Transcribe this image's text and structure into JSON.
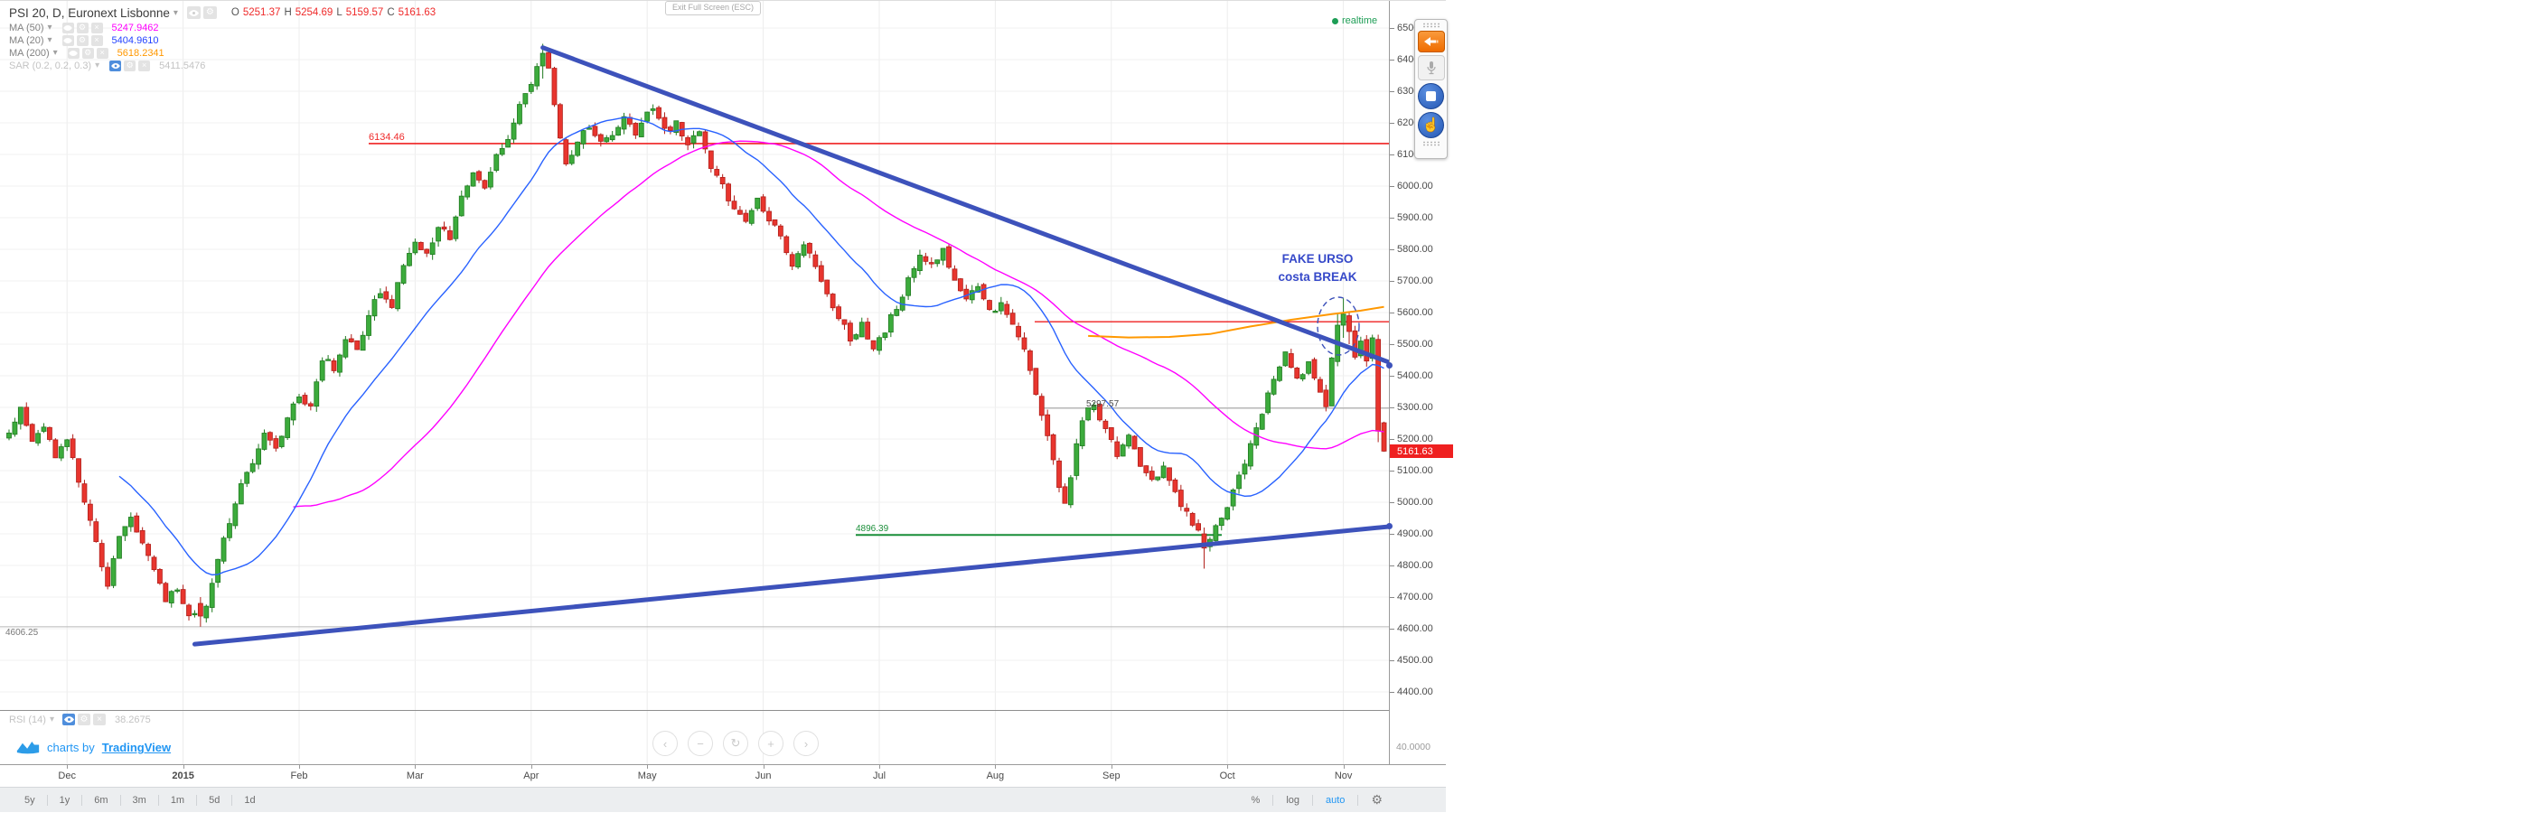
{
  "header": {
    "symbol": "PSI 20, D, Euronext Lisbonne",
    "ohlc": {
      "o_label": "O",
      "o": "5251.37",
      "h_label": "H",
      "h": "5254.69",
      "l_label": "L",
      "l": "5159.57",
      "c_label": "C",
      "c": "5161.63"
    },
    "exit_fullscreen": "Exit Full Screen (ESC)",
    "realtime": "realtime"
  },
  "legend": {
    "rows": [
      {
        "label": "MA (50)",
        "value": "5247.9462",
        "color": "#ff00ff",
        "muted": false
      },
      {
        "label": "MA (20)",
        "value": "5404.9610",
        "color": "#2443ff",
        "muted": false
      },
      {
        "label": "MA (200)",
        "value": "5618.2341",
        "color": "#ff9800",
        "muted": false
      },
      {
        "label": "SAR (0.2, 0.2, 0.3)",
        "value": "5411.5476",
        "color": "#c9c9c9",
        "muted": true
      }
    ]
  },
  "rsi": {
    "label": "RSI (14)",
    "value": "38.2675",
    "scale_label": "40.0000"
  },
  "attribution": {
    "text": "charts by",
    "link": "TradingView"
  },
  "price_axis": {
    "ticks": [
      6500,
      6400,
      6300,
      6200,
      6100,
      6000,
      5900,
      5800,
      5700,
      5600,
      5500,
      5400,
      5300,
      5200,
      5100,
      5000,
      4900,
      4800,
      4700,
      4600,
      4500,
      4400
    ],
    "last_price_label": "5161.63"
  },
  "time_axis": {
    "ticks": [
      {
        "label": "Dec",
        "day": 10,
        "bold": false
      },
      {
        "label": "2015",
        "day": 30,
        "bold": true
      },
      {
        "label": "Feb",
        "day": 50,
        "bold": false
      },
      {
        "label": "Mar",
        "day": 70,
        "bold": false
      },
      {
        "label": "Apr",
        "day": 90,
        "bold": false
      },
      {
        "label": "May",
        "day": 110,
        "bold": false
      },
      {
        "label": "Jun",
        "day": 130,
        "bold": false
      },
      {
        "label": "Jul",
        "day": 150,
        "bold": false
      },
      {
        "label": "Aug",
        "day": 170,
        "bold": false
      },
      {
        "label": "Sep",
        "day": 190,
        "bold": false
      },
      {
        "label": "Oct",
        "day": 210,
        "bold": false
      },
      {
        "label": "Nov",
        "day": 230,
        "bold": false
      }
    ]
  },
  "toolbar": {
    "ranges": [
      "5y",
      "1y",
      "6m",
      "3m",
      "1m",
      "5d",
      "1d"
    ],
    "percent": "%",
    "log": "log",
    "auto": "auto",
    "active_scale": "auto"
  },
  "nav_glyphs": [
    "‹",
    "−",
    "↻",
    "+",
    "›"
  ],
  "extension_toolbar": {
    "icons": [
      "back-arrow",
      "microphone",
      "stop",
      "hand-click"
    ]
  },
  "chart_data": {
    "type": "candlestick",
    "title": "PSI 20, D, Euronext Lisbonne",
    "timeframe": "D",
    "x_range": "Dec 2014 - Nov 2015",
    "ylim": [
      4350,
      6550
    ],
    "last_candle": {
      "o": 5251.37,
      "h": 5254.69,
      "l": 5159.57,
      "c": 5161.63
    },
    "colors": {
      "up": "#3cab3c",
      "up_border": "#1f7a1f",
      "down": "#e8352e",
      "down_border": "#b01f1a",
      "ma20": "#2962ff",
      "ma50": "#ff00ff",
      "ma200": "#ff9800",
      "trend": "#3d52bb"
    },
    "anchors": [
      [
        0,
        5210
      ],
      [
        2,
        5290
      ],
      [
        4,
        5180
      ],
      [
        6,
        5250
      ],
      [
        8,
        5150
      ],
      [
        10,
        5200
      ],
      [
        12,
        5060
      ],
      [
        14,
        4950
      ],
      [
        16,
        4790
      ],
      [
        17,
        4730
      ],
      [
        19,
        4890
      ],
      [
        21,
        4960
      ],
      [
        23,
        4870
      ],
      [
        25,
        4790
      ],
      [
        27,
        4690
      ],
      [
        29,
        4720
      ],
      [
        31,
        4645
      ],
      [
        33,
        4630
      ],
      [
        34,
        4680
      ],
      [
        36,
        4820
      ],
      [
        38,
        4930
      ],
      [
        40,
        5050
      ],
      [
        42,
        5120
      ],
      [
        44,
        5210
      ],
      [
        46,
        5160
      ],
      [
        48,
        5260
      ],
      [
        50,
        5340
      ],
      [
        52,
        5300
      ],
      [
        54,
        5460
      ],
      [
        56,
        5420
      ],
      [
        58,
        5520
      ],
      [
        60,
        5480
      ],
      [
        62,
        5600
      ],
      [
        64,
        5660
      ],
      [
        66,
        5620
      ],
      [
        68,
        5750
      ],
      [
        70,
        5820
      ],
      [
        72,
        5780
      ],
      [
        74,
        5880
      ],
      [
        76,
        5830
      ],
      [
        78,
        5960
      ],
      [
        80,
        6030
      ],
      [
        82,
        5990
      ],
      [
        84,
        6090
      ],
      [
        86,
        6160
      ],
      [
        88,
        6260
      ],
      [
        90,
        6330
      ],
      [
        92,
        6420
      ],
      [
        93,
        6380
      ],
      [
        94,
        6250
      ],
      [
        96,
        6080
      ],
      [
        98,
        6140
      ],
      [
        100,
        6190
      ],
      [
        102,
        6130
      ],
      [
        104,
        6170
      ],
      [
        106,
        6220
      ],
      [
        108,
        6160
      ],
      [
        110,
        6230
      ],
      [
        111,
        6255
      ],
      [
        113,
        6170
      ],
      [
        115,
        6200
      ],
      [
        117,
        6130
      ],
      [
        119,
        6170
      ],
      [
        121,
        6060
      ],
      [
        123,
        6000
      ],
      [
        125,
        5930
      ],
      [
        127,
        5890
      ],
      [
        129,
        5960
      ],
      [
        131,
        5900
      ],
      [
        133,
        5830
      ],
      [
        135,
        5750
      ],
      [
        137,
        5820
      ],
      [
        139,
        5740
      ],
      [
        141,
        5660
      ],
      [
        143,
        5580
      ],
      [
        145,
        5520
      ],
      [
        147,
        5560
      ],
      [
        149,
        5490
      ],
      [
        151,
        5545
      ],
      [
        153,
        5620
      ],
      [
        155,
        5700
      ],
      [
        157,
        5780
      ],
      [
        159,
        5745
      ],
      [
        161,
        5790
      ],
      [
        163,
        5700
      ],
      [
        165,
        5645
      ],
      [
        167,
        5685
      ],
      [
        169,
        5600
      ],
      [
        171,
        5630
      ],
      [
        173,
        5550
      ],
      [
        175,
        5480
      ],
      [
        177,
        5350
      ],
      [
        179,
        5210
      ],
      [
        181,
        5050
      ],
      [
        182,
        4985
      ],
      [
        183,
        5090
      ],
      [
        185,
        5265
      ],
      [
        187,
        5310
      ],
      [
        189,
        5230
      ],
      [
        191,
        5150
      ],
      [
        193,
        5225
      ],
      [
        195,
        5120
      ],
      [
        197,
        5060
      ],
      [
        199,
        5125
      ],
      [
        201,
        5030
      ],
      [
        203,
        4960
      ],
      [
        205,
        4900
      ],
      [
        206,
        4855
      ],
      [
        208,
        4925
      ],
      [
        210,
        4985
      ],
      [
        212,
        5085
      ],
      [
        214,
        5180
      ],
      [
        216,
        5285
      ],
      [
        218,
        5385
      ],
      [
        220,
        5465
      ],
      [
        222,
        5385
      ],
      [
        224,
        5445
      ],
      [
        226,
        5360
      ],
      [
        227,
        5305
      ],
      [
        228,
        5445
      ],
      [
        229,
        5560
      ],
      [
        230,
        5595
      ],
      [
        231,
        5540
      ],
      [
        232,
        5470
      ],
      [
        233,
        5510
      ],
      [
        234,
        5445
      ],
      [
        235,
        5520
      ],
      [
        236,
        5225
      ],
      [
        237,
        5161.63
      ]
    ],
    "overrides": {
      "33": [
        4680,
        4700,
        4606.25,
        4640
      ],
      "92": [
        6380,
        6450,
        6340,
        6420
      ],
      "206": [
        4900,
        4920,
        4790,
        4855
      ],
      "229": [
        5445,
        5600,
        5430,
        5560
      ],
      "230": [
        5560,
        5645,
        5520,
        5595
      ],
      "231": [
        5590,
        5600,
        5500,
        5540
      ],
      "235": [
        5455,
        5530,
        5445,
        5520
      ],
      "236": [
        5515,
        5530,
        5190,
        5225
      ],
      "237": [
        5251.37,
        5254.69,
        5159.57,
        5161.63
      ]
    },
    "ma200_path": [
      [
        186,
        5526
      ],
      [
        193,
        5521
      ],
      [
        200,
        5523
      ],
      [
        207,
        5532
      ],
      [
        214,
        5556
      ],
      [
        221,
        5577
      ],
      [
        228,
        5595
      ],
      [
        233,
        5606
      ],
      [
        237,
        5618
      ]
    ],
    "trendlines": [
      {
        "name": "upper-descending",
        "p1": [
          92,
          6438
        ],
        "p2": [
          239,
          5435
        ]
      },
      {
        "name": "lower-ascending",
        "p1": [
          32,
          4551
        ],
        "p2": [
          239,
          4925
        ]
      }
    ],
    "hlines": [
      {
        "label": "6134.46",
        "price": 6134.46,
        "x1": 408,
        "x2": 1537,
        "color": "#ef2020",
        "width": 1.6
      },
      {
        "label": "",
        "price": 5571,
        "x1": 1145,
        "x2": 1537,
        "color": "#ef2020",
        "width": 1.4
      },
      {
        "label": "5297.57",
        "price": 5297.57,
        "x1": 1150,
        "x2": 1537,
        "color": "#9a9a9a",
        "width": 1
      },
      {
        "label": "4896.39",
        "price": 4896.39,
        "x1": 947,
        "x2": 1352,
        "color": "#1b8f3a",
        "width": 2
      },
      {
        "label": "4606.25",
        "price": 4606.25,
        "x1": 0,
        "x2": 1537,
        "color": "#b8b8b8",
        "width": 1
      }
    ],
    "ellipse": {
      "cx": 1481,
      "cy": 360,
      "rx": 23,
      "ry": 32
    },
    "annotation": {
      "line1": "FAKE URSO",
      "line2": "costa BREAK",
      "color": "#3649c9"
    }
  }
}
